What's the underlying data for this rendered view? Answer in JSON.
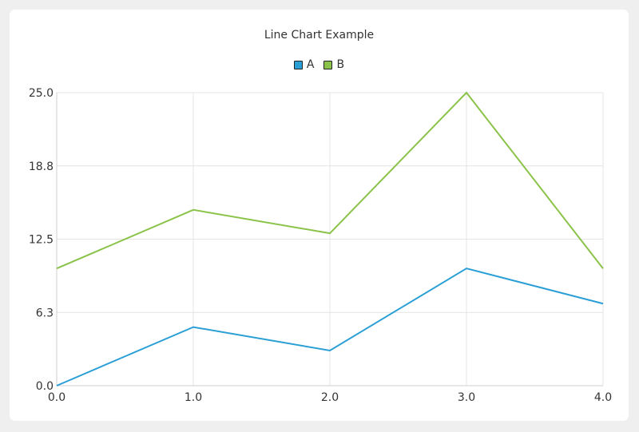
{
  "chart_data": {
    "type": "line",
    "title": "Line Chart Example",
    "x": [
      0,
      1,
      2,
      3,
      4
    ],
    "xticks": [
      "0.0",
      "1.0",
      "2.0",
      "3.0",
      "4.0"
    ],
    "yticks": [
      {
        "value": 0,
        "label": "0.0"
      },
      {
        "value": 6.25,
        "label": "6.3"
      },
      {
        "value": 12.5,
        "label": "12.5"
      },
      {
        "value": 18.75,
        "label": "18.8"
      },
      {
        "value": 25,
        "label": "25.0"
      }
    ],
    "xlim": [
      0,
      4
    ],
    "ylim": [
      0,
      25
    ],
    "grid": true,
    "legend_position": "top-center",
    "series": [
      {
        "name": "A",
        "values": [
          0,
          5,
          3,
          10,
          7
        ],
        "color": "#2a9fd6"
      },
      {
        "name": "B",
        "values": [
          10,
          15,
          13,
          25,
          10
        ],
        "color": "#8bc34a"
      }
    ]
  }
}
